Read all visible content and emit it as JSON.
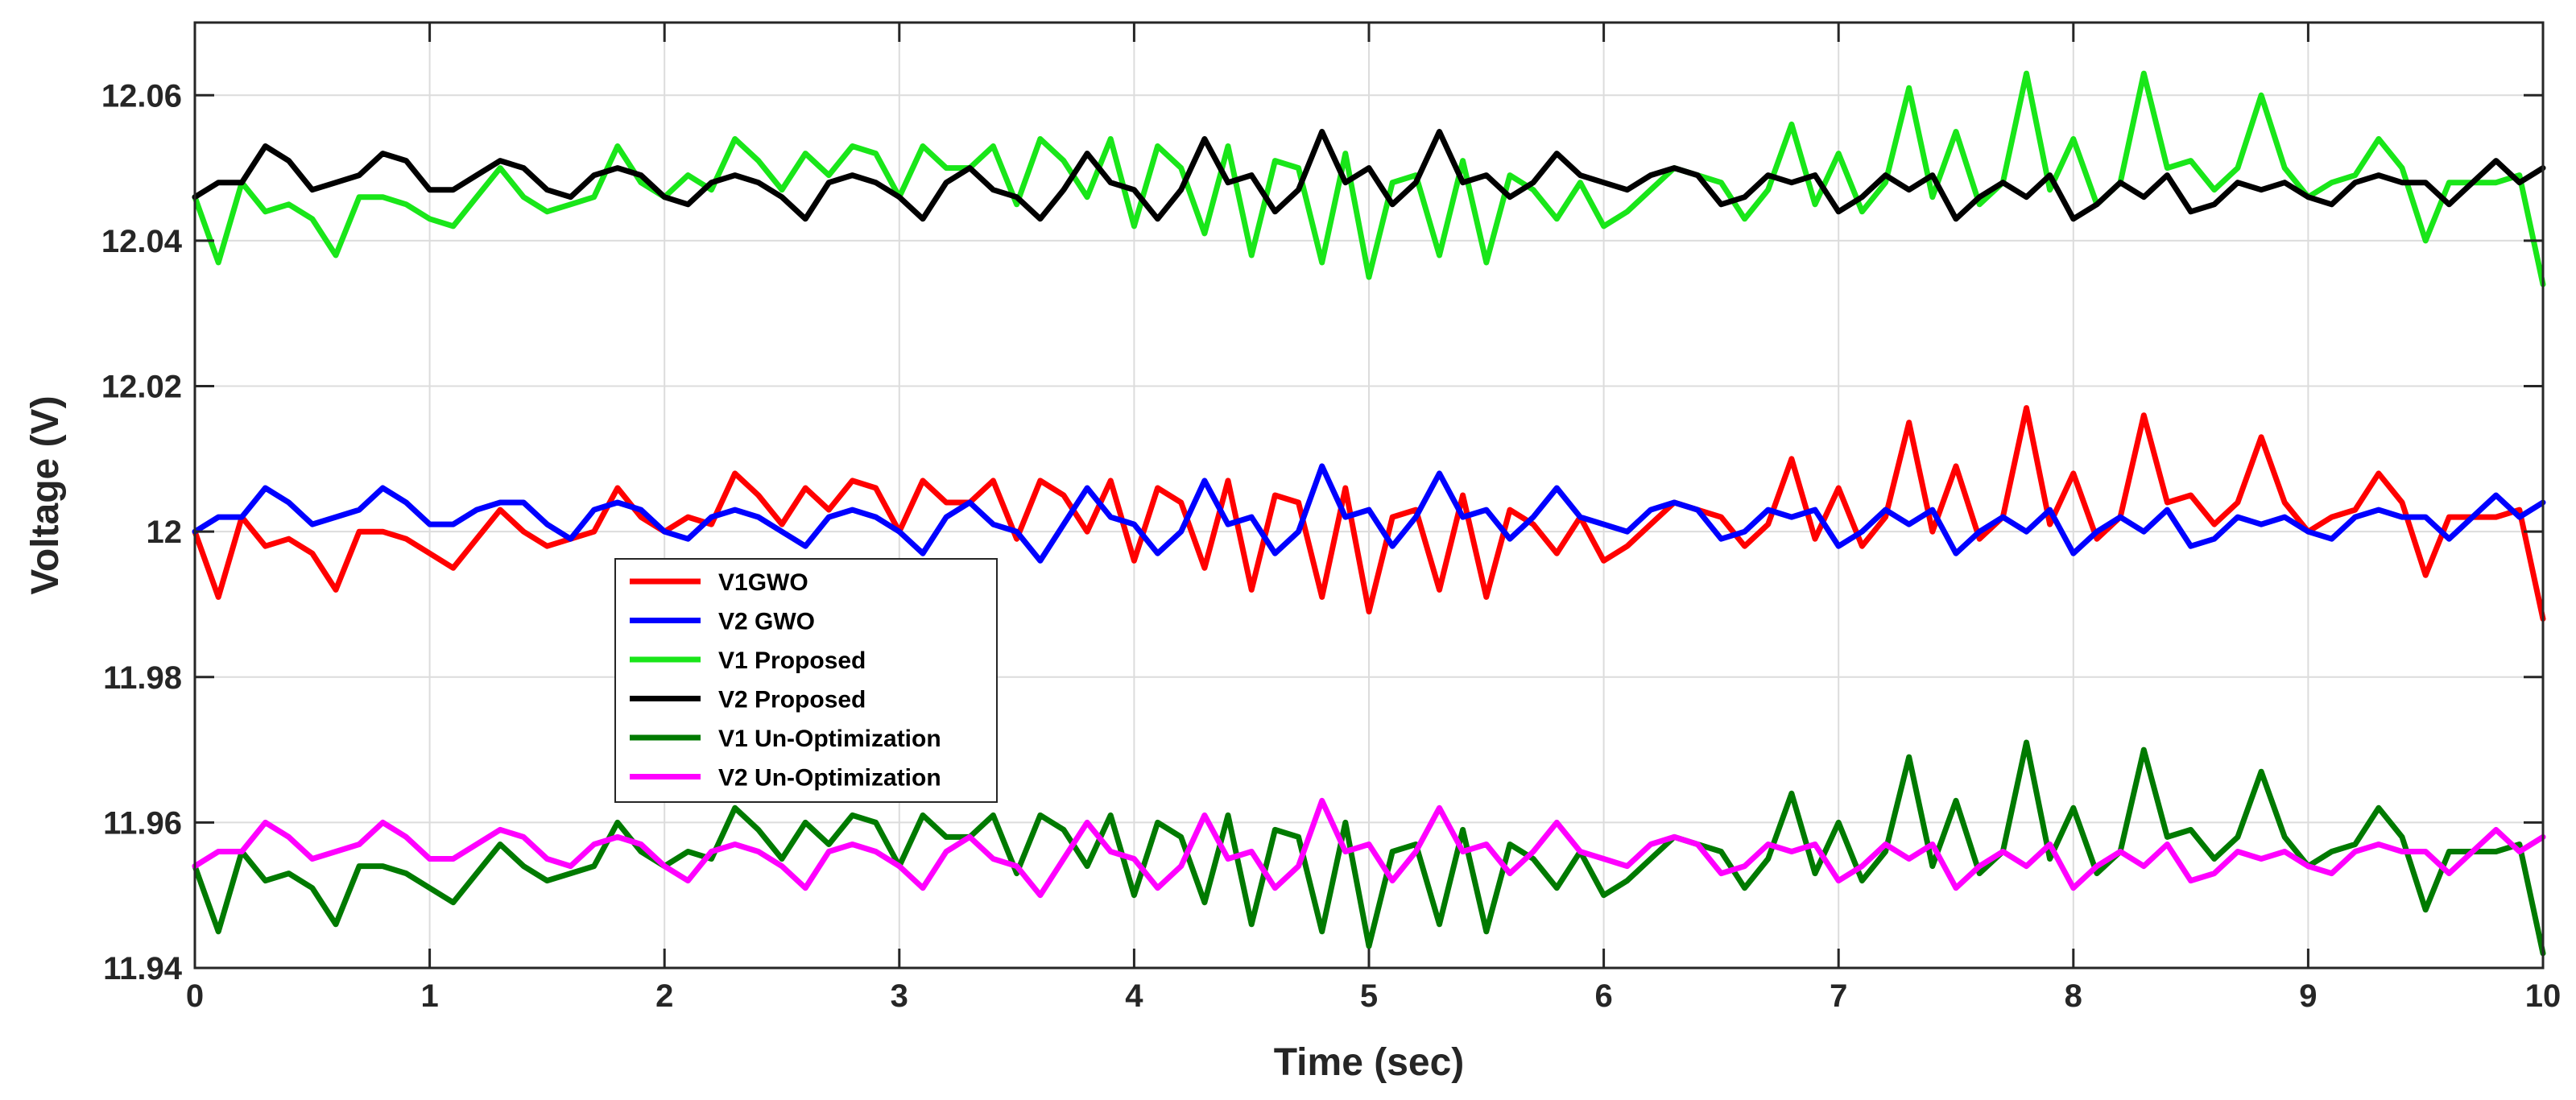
{
  "chart_data": {
    "type": "line",
    "title": "",
    "xlabel": "Time (sec)",
    "ylabel": "Voltage (V)",
    "xlim": [
      0,
      10
    ],
    "ylim": [
      11.94,
      12.07
    ],
    "grid": true,
    "legend_position": "center-left",
    "x_ticks": [
      0,
      1,
      2,
      3,
      4,
      5,
      6,
      7,
      8,
      9,
      10
    ],
    "x_tick_labels": [
      "0",
      "1",
      "2",
      "3",
      "4",
      "5",
      "6",
      "7",
      "8",
      "9",
      "10"
    ],
    "y_ticks": [
      11.94,
      11.96,
      11.98,
      12.0,
      12.02,
      12.04,
      12.06
    ],
    "y_tick_labels": [
      "11.94",
      "11.96",
      "11.98",
      "12",
      "12.02",
      "12.04",
      "12.06"
    ],
    "x": [
      0.0,
      0.1,
      0.2,
      0.3,
      0.4,
      0.5,
      0.6,
      0.7,
      0.8,
      0.9,
      1.0,
      1.1,
      1.2,
      1.3,
      1.4,
      1.5,
      1.6,
      1.7,
      1.8,
      1.9,
      2.0,
      2.1,
      2.2,
      2.3,
      2.4,
      2.5,
      2.6,
      2.7,
      2.8,
      2.9,
      3.0,
      3.1,
      3.2,
      3.3,
      3.4,
      3.5,
      3.6,
      3.7,
      3.8,
      3.9,
      4.0,
      4.1,
      4.2,
      4.3,
      4.4,
      4.5,
      4.6,
      4.7,
      4.8,
      4.9,
      5.0,
      5.1,
      5.2,
      5.3,
      5.4,
      5.5,
      5.6,
      5.7,
      5.8,
      5.9,
      6.0,
      6.1,
      6.2,
      6.3,
      6.4,
      6.5,
      6.6,
      6.7,
      6.8,
      6.9,
      7.0,
      7.1,
      7.2,
      7.3,
      7.4,
      7.5,
      7.6,
      7.7,
      7.8,
      7.9,
      8.0,
      8.1,
      8.2,
      8.3,
      8.4,
      8.5,
      8.6,
      8.7,
      8.8,
      8.9,
      9.0,
      9.1,
      9.2,
      9.3,
      9.4,
      9.5,
      9.6,
      9.7,
      9.8,
      9.9,
      10.0
    ],
    "series": [
      {
        "name": "V1GWO",
        "color": "#ff0000",
        "values": [
          12.0,
          11.991,
          12.002,
          11.998,
          11.999,
          11.997,
          11.992,
          12.0,
          12.0,
          11.999,
          11.997,
          11.995,
          11.999,
          12.003,
          12.0,
          11.998,
          11.999,
          12.0,
          12.006,
          12.002,
          12.0,
          12.002,
          12.001,
          12.008,
          12.005,
          12.001,
          12.006,
          12.003,
          12.007,
          12.006,
          12.0,
          12.007,
          12.004,
          12.004,
          12.007,
          11.999,
          12.007,
          12.005,
          12.0,
          12.007,
          11.996,
          12.006,
          12.004,
          11.995,
          12.007,
          11.992,
          12.005,
          12.004,
          11.991,
          12.006,
          11.989,
          12.002,
          12.003,
          11.992,
          12.005,
          11.991,
          12.003,
          12.001,
          11.997,
          12.002,
          11.996,
          11.998,
          12.001,
          12.004,
          12.003,
          12.002,
          11.998,
          12.001,
          12.01,
          11.999,
          12.006,
          11.998,
          12.002,
          12.015,
          12.0,
          12.009,
          11.999,
          12.002,
          12.017,
          12.001,
          12.008,
          11.999,
          12.002,
          12.016,
          12.004,
          12.005,
          12.001,
          12.004,
          12.013,
          12.004,
          12.0,
          12.002,
          12.003,
          12.008,
          12.004,
          11.994,
          12.002,
          12.002,
          12.002,
          12.003,
          11.988
        ]
      },
      {
        "name": "V2 GWO",
        "color": "#0000ff",
        "values": [
          12.0,
          12.002,
          12.002,
          12.006,
          12.004,
          12.001,
          12.002,
          12.003,
          12.006,
          12.004,
          12.001,
          12.001,
          12.003,
          12.004,
          12.004,
          12.001,
          11.999,
          12.003,
          12.004,
          12.003,
          12.0,
          11.999,
          12.002,
          12.003,
          12.002,
          12.0,
          11.998,
          12.002,
          12.003,
          12.002,
          12.0,
          11.997,
          12.002,
          12.004,
          12.001,
          12.0,
          11.996,
          12.001,
          12.006,
          12.002,
          12.001,
          11.997,
          12.0,
          12.007,
          12.001,
          12.002,
          11.997,
          12.0,
          12.009,
          12.002,
          12.003,
          11.998,
          12.002,
          12.008,
          12.002,
          12.003,
          11.999,
          12.002,
          12.006,
          12.002,
          12.001,
          12.0,
          12.003,
          12.004,
          12.003,
          11.999,
          12.0,
          12.003,
          12.002,
          12.003,
          11.998,
          12.0,
          12.003,
          12.001,
          12.003,
          11.997,
          12.0,
          12.002,
          12.0,
          12.003,
          11.997,
          12.0,
          12.002,
          12.0,
          12.003,
          11.998,
          11.999,
          12.002,
          12.001,
          12.002,
          12.0,
          11.999,
          12.002,
          12.003,
          12.002,
          12.002,
          11.999,
          12.002,
          12.005,
          12.002,
          12.004
        ]
      },
      {
        "name": "V1 Proposed",
        "color": "#19e619",
        "values": [
          12.046,
          12.037,
          12.048,
          12.044,
          12.045,
          12.043,
          12.038,
          12.046,
          12.046,
          12.045,
          12.043,
          12.042,
          12.046,
          12.05,
          12.046,
          12.044,
          12.045,
          12.046,
          12.053,
          12.048,
          12.046,
          12.049,
          12.047,
          12.054,
          12.051,
          12.047,
          12.052,
          12.049,
          12.053,
          12.052,
          12.046,
          12.053,
          12.05,
          12.05,
          12.053,
          12.045,
          12.054,
          12.051,
          12.046,
          12.054,
          12.042,
          12.053,
          12.05,
          12.041,
          12.053,
          12.038,
          12.051,
          12.05,
          12.037,
          12.052,
          12.035,
          12.048,
          12.049,
          12.038,
          12.051,
          12.037,
          12.049,
          12.047,
          12.043,
          12.048,
          12.042,
          12.044,
          12.047,
          12.05,
          12.049,
          12.048,
          12.043,
          12.047,
          12.056,
          12.045,
          12.052,
          12.044,
          12.048,
          12.061,
          12.046,
          12.055,
          12.045,
          12.048,
          12.063,
          12.047,
          12.054,
          12.045,
          12.048,
          12.063,
          12.05,
          12.051,
          12.047,
          12.05,
          12.06,
          12.05,
          12.046,
          12.048,
          12.049,
          12.054,
          12.05,
          12.04,
          12.048,
          12.048,
          12.048,
          12.049,
          12.034
        ]
      },
      {
        "name": "V2 Proposed",
        "color": "#000000",
        "values": [
          12.046,
          12.048,
          12.048,
          12.053,
          12.051,
          12.047,
          12.048,
          12.049,
          12.052,
          12.051,
          12.047,
          12.047,
          12.049,
          12.051,
          12.05,
          12.047,
          12.046,
          12.049,
          12.05,
          12.049,
          12.046,
          12.045,
          12.048,
          12.049,
          12.048,
          12.046,
          12.043,
          12.048,
          12.049,
          12.048,
          12.046,
          12.043,
          12.048,
          12.05,
          12.047,
          12.046,
          12.043,
          12.047,
          12.052,
          12.048,
          12.047,
          12.043,
          12.047,
          12.054,
          12.048,
          12.049,
          12.044,
          12.047,
          12.055,
          12.048,
          12.05,
          12.045,
          12.048,
          12.055,
          12.048,
          12.049,
          12.046,
          12.048,
          12.052,
          12.049,
          12.048,
          12.047,
          12.049,
          12.05,
          12.049,
          12.045,
          12.046,
          12.049,
          12.048,
          12.049,
          12.044,
          12.046,
          12.049,
          12.047,
          12.049,
          12.043,
          12.046,
          12.048,
          12.046,
          12.049,
          12.043,
          12.045,
          12.048,
          12.046,
          12.049,
          12.044,
          12.045,
          12.048,
          12.047,
          12.048,
          12.046,
          12.045,
          12.048,
          12.049,
          12.048,
          12.048,
          12.045,
          12.048,
          12.051,
          12.048,
          12.05
        ]
      },
      {
        "name": "V1 Un-Optimization",
        "color": "#007a00",
        "values": [
          11.954,
          11.945,
          11.956,
          11.952,
          11.953,
          11.951,
          11.946,
          11.954,
          11.954,
          11.953,
          11.951,
          11.949,
          11.953,
          11.957,
          11.954,
          11.952,
          11.953,
          11.954,
          11.96,
          11.956,
          11.954,
          11.956,
          11.955,
          11.962,
          11.959,
          11.955,
          11.96,
          11.957,
          11.961,
          11.96,
          11.954,
          11.961,
          11.958,
          11.958,
          11.961,
          11.953,
          11.961,
          11.959,
          11.954,
          11.961,
          11.95,
          11.96,
          11.958,
          11.949,
          11.961,
          11.946,
          11.959,
          11.958,
          11.945,
          11.96,
          11.943,
          11.956,
          11.957,
          11.946,
          11.959,
          11.945,
          11.957,
          11.955,
          11.951,
          11.956,
          11.95,
          11.952,
          11.955,
          11.958,
          11.957,
          11.956,
          11.951,
          11.955,
          11.964,
          11.953,
          11.96,
          11.952,
          11.956,
          11.969,
          11.954,
          11.963,
          11.953,
          11.956,
          11.971,
          11.955,
          11.962,
          11.953,
          11.956,
          11.97,
          11.958,
          11.959,
          11.955,
          11.958,
          11.967,
          11.958,
          11.954,
          11.956,
          11.957,
          11.962,
          11.958,
          11.948,
          11.956,
          11.956,
          11.956,
          11.957,
          11.942
        ]
      },
      {
        "name": "V2 Un-Optimization",
        "color": "#ff00ff",
        "values": [
          11.954,
          11.956,
          11.956,
          11.96,
          11.958,
          11.955,
          11.956,
          11.957,
          11.96,
          11.958,
          11.955,
          11.955,
          11.957,
          11.959,
          11.958,
          11.955,
          11.954,
          11.957,
          11.958,
          11.957,
          11.954,
          11.952,
          11.956,
          11.957,
          11.956,
          11.954,
          11.951,
          11.956,
          11.957,
          11.956,
          11.954,
          11.951,
          11.956,
          11.958,
          11.955,
          11.954,
          11.95,
          11.955,
          11.96,
          11.956,
          11.955,
          11.951,
          11.954,
          11.961,
          11.955,
          11.956,
          11.951,
          11.954,
          11.963,
          11.956,
          11.957,
          11.952,
          11.956,
          11.962,
          11.956,
          11.957,
          11.953,
          11.956,
          11.96,
          11.956,
          11.955,
          11.954,
          11.957,
          11.958,
          11.957,
          11.953,
          11.954,
          11.957,
          11.956,
          11.957,
          11.952,
          11.954,
          11.957,
          11.955,
          11.957,
          11.951,
          11.954,
          11.956,
          11.954,
          11.957,
          11.951,
          11.954,
          11.956,
          11.954,
          11.957,
          11.952,
          11.953,
          11.956,
          11.955,
          11.956,
          11.954,
          11.953,
          11.956,
          11.957,
          11.956,
          11.956,
          11.953,
          11.956,
          11.959,
          11.956,
          11.958
        ]
      }
    ]
  }
}
